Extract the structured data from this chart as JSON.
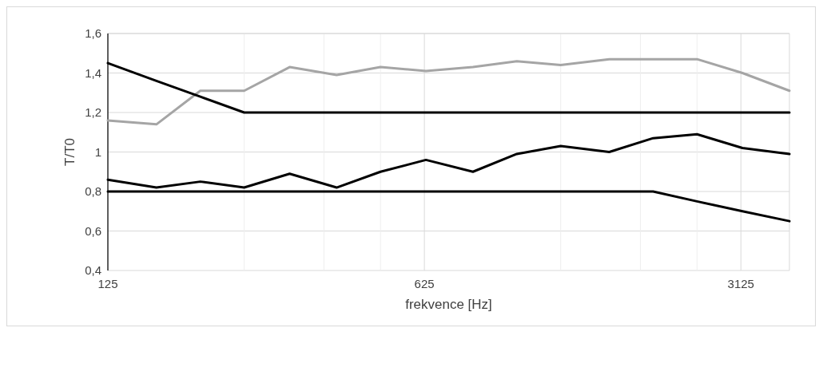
{
  "chart_data": {
    "type": "line",
    "xlabel": "frekvence [Hz]",
    "ylabel": "T/T0",
    "log": "x",
    "x": [
      125,
      160,
      200,
      250,
      315,
      400,
      500,
      630,
      800,
      1000,
      1250,
      1600,
      2000,
      2500,
      3150,
      4000
    ],
    "series": [
      {
        "color": "#a5a5a5",
        "values": [
          1.16,
          1.14,
          1.31,
          1.31,
          1.43,
          1.39,
          1.43,
          1.41,
          1.43,
          1.46,
          1.44,
          1.47,
          1.47,
          1.47,
          1.4,
          1.31
        ]
      },
      {
        "color": "#000000",
        "values": [
          1.45,
          1.36,
          1.28,
          1.2,
          1.2,
          1.2,
          1.2,
          1.2,
          1.2,
          1.2,
          1.2,
          1.2,
          1.2,
          1.2,
          1.2,
          1.2
        ]
      },
      {
        "color": "#000000",
        "values": [
          0.86,
          0.82,
          0.85,
          0.82,
          0.89,
          0.82,
          0.9,
          0.96,
          0.9,
          0.99,
          1.03,
          1.0,
          1.07,
          1.09,
          1.02,
          0.99
        ]
      },
      {
        "color": "#000000",
        "values": [
          0.8,
          0.8,
          0.8,
          0.8,
          0.8,
          0.8,
          0.8,
          0.8,
          0.8,
          0.8,
          0.8,
          0.8,
          0.8,
          0.75,
          0.7,
          0.65
        ]
      }
    ],
    "xlim": [
      125,
      4000
    ],
    "xticks": [
      125,
      {
        "value": 250,
        "label": null
      },
      {
        "value": 375,
        "label": null
      },
      {
        "value": 500,
        "label": null
      },
      625,
      {
        "value": 1250,
        "label": null
      },
      {
        "value": 1875,
        "label": null
      },
      {
        "value": 2500,
        "label": null
      },
      3125
    ],
    "ylim": [
      0.4,
      1.6
    ],
    "yticks": [
      {
        "value": 0.4,
        "label": "0,4"
      },
      {
        "value": 0.6,
        "label": "0,6"
      },
      {
        "value": 0.8,
        "label": "0,8"
      },
      1,
      {
        "value": 1.2,
        "label": "1,2"
      },
      {
        "value": 1.4,
        "label": "1,4"
      },
      {
        "value": 1.6,
        "label": "1,6"
      }
    ],
    "grid": true,
    "marker": "none",
    "line_style": "solid"
  }
}
